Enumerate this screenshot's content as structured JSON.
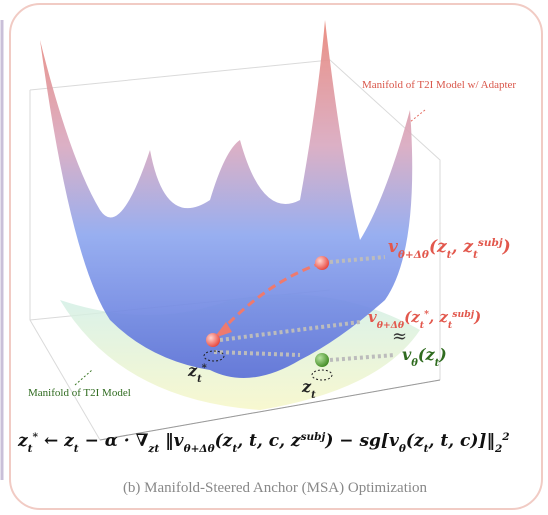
{
  "annotations": {
    "adapter_manifold": "Manifold of T2I Model w/ Adapter",
    "base_manifold": "Manifold of T2I Model",
    "approx": "≈"
  },
  "labels": {
    "v_adapter_zt": [
      "v",
      "θ+Δθ",
      "(",
      "z",
      "t",
      ", ",
      "z",
      "t",
      "subj",
      ")"
    ],
    "v_adapter_star": [
      "v",
      "θ+Δθ",
      "(",
      "z",
      "t",
      "*",
      ", ",
      "z",
      "t",
      "subj",
      ")"
    ],
    "v_base": [
      "v",
      "θ",
      "(",
      "z",
      "t",
      ")"
    ],
    "z_star": [
      "z",
      "t",
      "*"
    ],
    "z_t": [
      "z",
      "t"
    ]
  },
  "formula": [
    "z",
    "t",
    "*",
    " ← ",
    "z",
    "t",
    " − α · ∇",
    "z",
    "t",
    " ‖",
    "v",
    "θ+Δθ",
    "(",
    "z",
    "t",
    ", t, ",
    "c",
    ", ",
    "z",
    "subj",
    ") − sg[",
    "v",
    "θ",
    "(",
    "z",
    "t",
    ", t, ",
    "c",
    ")]‖",
    "2",
    "2"
  ],
  "caption": "(b) Manifold-Steered Anchor (MSA) Optimization"
}
